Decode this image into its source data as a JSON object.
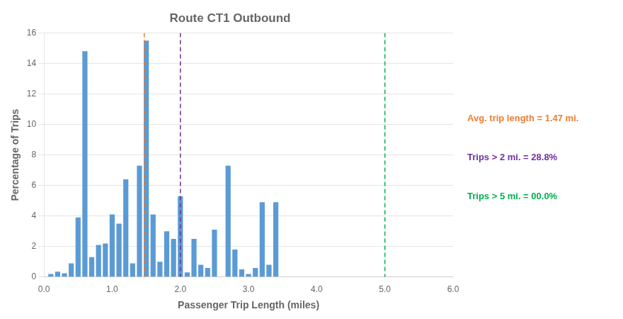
{
  "chart_data": {
    "type": "bar",
    "title": "Route CT1 Outbound",
    "x_label": "Passenger Trip Length (miles)",
    "y_label": "Percentage of Trips",
    "x": [
      0.1,
      0.2,
      0.3,
      0.4,
      0.5,
      0.6,
      0.7,
      0.8,
      0.9,
      1.0,
      1.1,
      1.2,
      1.3,
      1.4,
      1.5,
      1.6,
      1.7,
      1.8,
      1.9,
      2.0,
      2.1,
      2.2,
      2.3,
      2.4,
      2.5,
      2.6,
      2.7,
      2.8,
      2.9,
      3.0,
      3.1,
      3.2,
      3.3,
      3.4,
      3.5
    ],
    "values": [
      0.2,
      0.35,
      0.25,
      0.9,
      3.9,
      14.8,
      1.3,
      2.1,
      2.2,
      4.1,
      3.5,
      6.4,
      0.9,
      7.3,
      15.5,
      4.1,
      1.0,
      3.0,
      2.5,
      5.3,
      0.3,
      2.5,
      0.8,
      0.6,
      3.1,
      0.0,
      7.3,
      1.8,
      0.5,
      0.2,
      0.6,
      4.9,
      0.8,
      4.9,
      0.0
    ],
    "color": "#5B9BD5",
    "xlim": [
      0.0,
      6.0
    ],
    "xticks": [
      {
        "value": 0.0,
        "label": "0.0"
      },
      {
        "value": 1.0,
        "label": "1.0"
      },
      {
        "value": 2.0,
        "label": "2.0"
      },
      {
        "value": 3.0,
        "label": "3.0"
      },
      {
        "value": 4.0,
        "label": "4.0"
      },
      {
        "value": 5.0,
        "label": "5.0"
      },
      {
        "value": 6.0,
        "label": "6.0"
      }
    ],
    "ylim": [
      0,
      16
    ],
    "yticks": [
      0,
      2,
      4,
      6,
      8,
      10,
      12,
      14,
      16
    ],
    "grid": "y",
    "reference_lines": [
      {
        "x": 1.47,
        "color": "#ED7D31",
        "line_style": "dashed",
        "label": "Avg. trip length = 1.47 mi."
      },
      {
        "x": 2.0,
        "color": "#7030A0",
        "line_style": "dashed",
        "label": "Trips > 2 mi. = 28.8%"
      },
      {
        "x": 5.0,
        "color": "#00B050",
        "line_style": "dashed",
        "label": "Trips > 5 mi. = 00.0%"
      }
    ]
  }
}
